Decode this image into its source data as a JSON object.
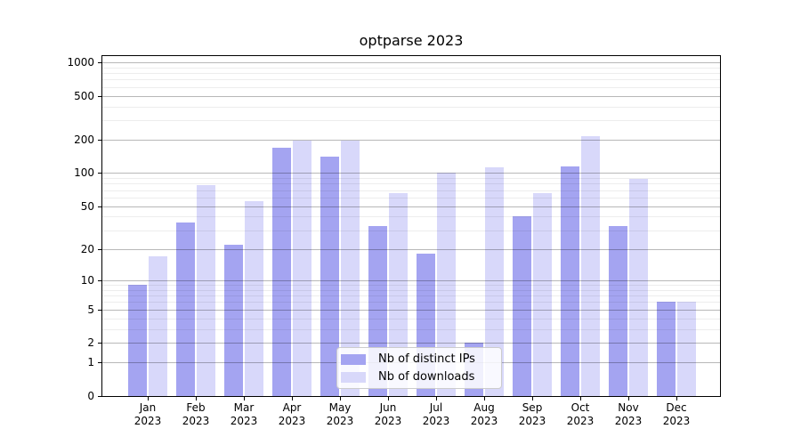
{
  "page": {
    "background": "#ffffff"
  },
  "chart_data": {
    "type": "bar",
    "title": "optparse 2023",
    "categories": [
      "Jan 2023",
      "Feb 2023",
      "Mar 2023",
      "Apr 2023",
      "May 2023",
      "Jun 2023",
      "Jul 2023",
      "Aug 2023",
      "Sep 2023",
      "Oct 2023",
      "Nov 2023",
      "Dec 2023"
    ],
    "series": [
      {
        "name": "Nb of distinct IPs",
        "color": "#a4a4f1",
        "values": [
          9,
          35,
          22,
          170,
          140,
          33,
          18,
          2,
          40,
          114,
          33,
          6
        ]
      },
      {
        "name": "Nb of downloads",
        "color": "#d8d8fa",
        "values": [
          17,
          78,
          56,
          195,
          195,
          66,
          100,
          112,
          66,
          217,
          89,
          6
        ]
      }
    ],
    "xlabel": "",
    "ylabel": "",
    "yscale": "log1p",
    "ylim": [
      0,
      1180
    ],
    "y_major_ticks": [
      0,
      1,
      2,
      5,
      10,
      20,
      50,
      100,
      200,
      500,
      1000
    ],
    "y_minor_gridlines": [
      3,
      4,
      6,
      7,
      8,
      9,
      30,
      40,
      60,
      70,
      80,
      90,
      300,
      400,
      600,
      700,
      800,
      900
    ],
    "grid": "on",
    "legend_position": "lower center"
  },
  "colors": {
    "bar_distinct_ips": "#a4a4f1",
    "bar_downloads": "#d8d8fa",
    "major_grid": "#b8b8b8",
    "minor_grid": "#eeeeee",
    "spine": "#000000",
    "text": "#000000",
    "legend_border": "#cccccc"
  }
}
